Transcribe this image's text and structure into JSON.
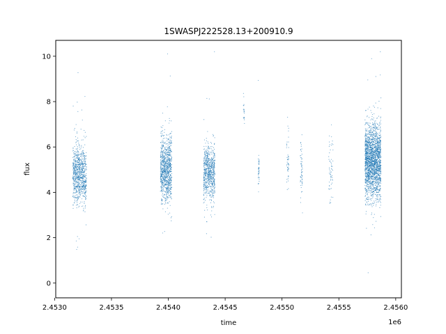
{
  "chart_data": {
    "type": "scatter",
    "title": "1SWASPJ222528.13+200910.9",
    "xlabel": "time",
    "ylabel": "flux",
    "x_offset_label": "1e6",
    "xlim": [
      2.45301,
      2.45605
    ],
    "ylim": [
      -0.65,
      10.7
    ],
    "x_ticks": [
      2.453,
      2.4535,
      2.454,
      2.4545,
      2.455,
      2.4555,
      2.456
    ],
    "x_tick_labels": [
      "2.4530",
      "2.4535",
      "2.4540",
      "2.4545",
      "2.4550",
      "2.4555",
      "2.4560"
    ],
    "y_ticks": [
      0,
      2,
      4,
      6,
      8,
      10
    ],
    "y_tick_labels": [
      "0",
      "2",
      "4",
      "6",
      "8",
      "10"
    ],
    "grid": false,
    "legend": "none",
    "point_color": "#1f77b4",
    "clusters": [
      {
        "x_start": 2.45316,
        "x_end": 2.45328,
        "y_center": 4.8,
        "y_spread": 1.2,
        "points": 900
      },
      {
        "x_start": 2.45393,
        "x_end": 2.45403,
        "y_center": 5.0,
        "y_spread": 1.4,
        "points": 1000
      },
      {
        "x_start": 2.45431,
        "x_end": 2.45441,
        "y_center": 4.9,
        "y_spread": 1.1,
        "points": 750
      },
      {
        "x_start": 2.45466,
        "x_end": 2.45467,
        "y_center": 7.7,
        "y_spread": 0.5,
        "points": 20
      },
      {
        "x_start": 2.45479,
        "x_end": 2.4548,
        "y_center": 4.9,
        "y_spread": 0.8,
        "points": 40
      },
      {
        "x_start": 2.45504,
        "x_end": 2.45506,
        "y_center": 5.3,
        "y_spread": 1.2,
        "points": 50
      },
      {
        "x_start": 2.45516,
        "x_end": 2.45518,
        "y_center": 5.0,
        "y_spread": 1.1,
        "points": 60
      },
      {
        "x_start": 2.45541,
        "x_end": 2.45545,
        "y_center": 5.0,
        "y_spread": 1.5,
        "points": 60
      },
      {
        "x_start": 2.45573,
        "x_end": 2.45587,
        "y_center": 5.4,
        "y_spread": 1.5,
        "points": 2200
      }
    ]
  }
}
